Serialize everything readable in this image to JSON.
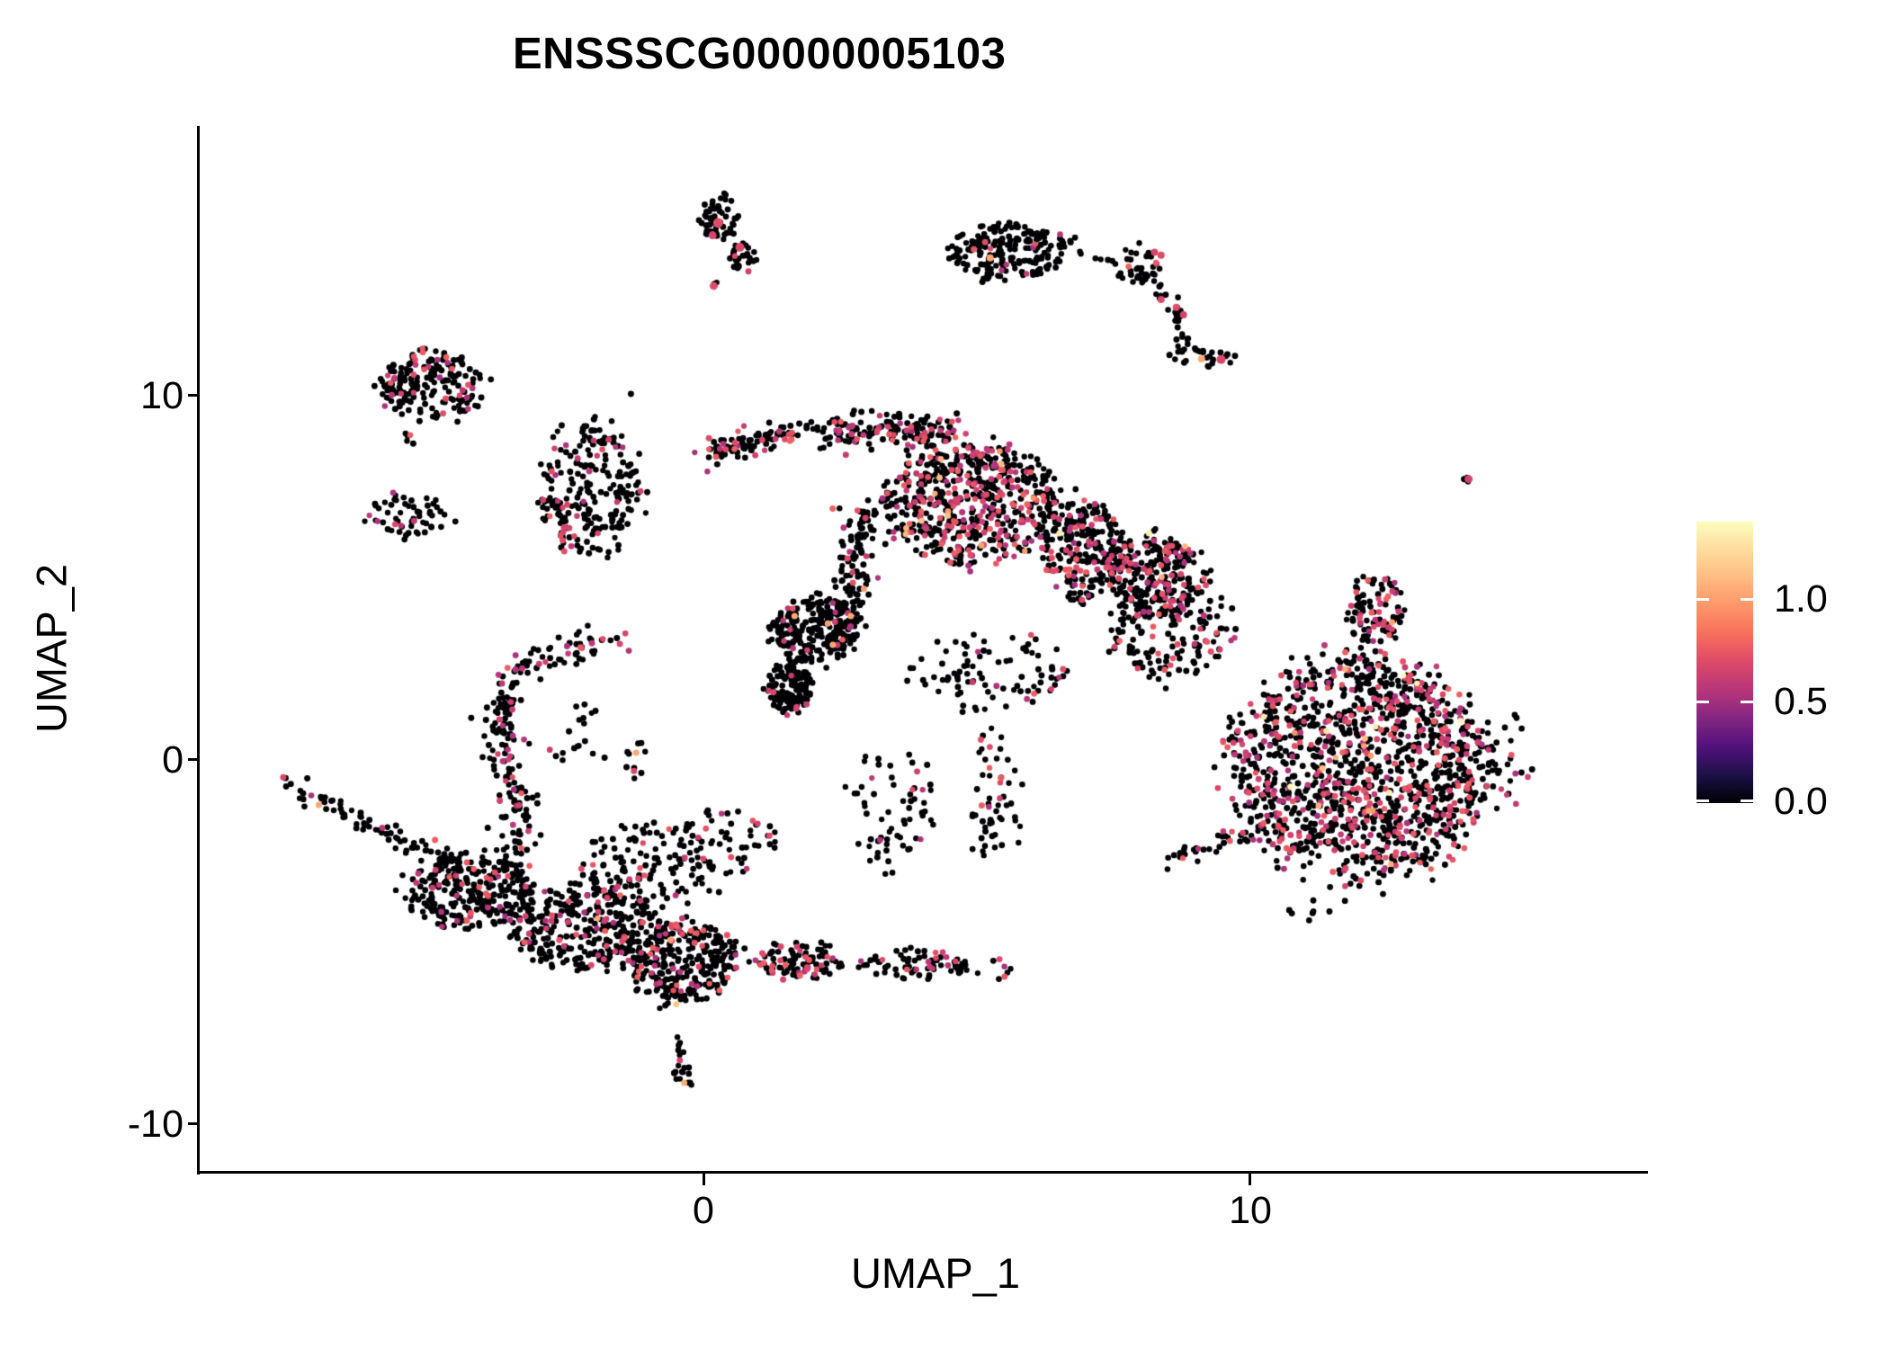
{
  "title": "ENSSSCG00000005103",
  "axes": {
    "x_label": "UMAP_1",
    "y_label": "UMAP_2",
    "xlim": [
      -9.23,
      17.25
    ],
    "ylim": [
      -11.3,
      17.4
    ],
    "x_ticks": [
      {
        "value": 0,
        "label": "0"
      },
      {
        "value": 10,
        "label": "10"
      }
    ],
    "y_ticks": [
      {
        "value": 10,
        "label": "10"
      },
      {
        "value": 0,
        "label": "0"
      },
      {
        "value": -10,
        "label": "-10"
      }
    ]
  },
  "legend": {
    "colormap": "magma",
    "vmin": 0,
    "vmax": 1.38,
    "anchors": [
      "#000004",
      "#1c1147",
      "#51127c",
      "#832681",
      "#b63679",
      "#dd4968",
      "#f76f5c",
      "#fe9569",
      "#febb81",
      "#fedc9d",
      "#fcfdbf"
    ],
    "ticks": [
      {
        "value": 1.0,
        "label": "1.0"
      },
      {
        "value": 0.5,
        "label": "0.5"
      },
      {
        "value": 0.0,
        "label": "0.0"
      }
    ]
  },
  "chart_data": {
    "type": "scatter",
    "title": "ENSSSCG00000005103",
    "xlabel": "UMAP_1",
    "ylabel": "UMAP_2",
    "legend_position": "right",
    "grid": false,
    "seed": 42,
    "point_radius_px": 3.1,
    "value_model": {
      "zero_value": 0,
      "pink_range": [
        0.5,
        0.78
      ],
      "orange_range": [
        0.95,
        1.15
      ],
      "pale_range": [
        1.26,
        1.38
      ]
    },
    "clusters": [
      {
        "name": "top-chain-a",
        "type": "blob",
        "cx": 0.3,
        "cy": 14.89,
        "rx": 0.36,
        "ry": 0.62,
        "n": 55,
        "pink": 0.04
      },
      {
        "name": "top-chain-b",
        "type": "blob",
        "cx": 0.72,
        "cy": 13.85,
        "rx": 0.25,
        "ry": 0.4,
        "n": 28,
        "pink": 0.04
      },
      {
        "name": "top-chain-c",
        "type": "blob",
        "cx": 0.2,
        "cy": 13.1,
        "rx": 0.1,
        "ry": 0.1,
        "n": 3
      },
      {
        "name": "topright-mass",
        "type": "blob",
        "cx": 5.57,
        "cy": 13.95,
        "rx": 1.02,
        "ry": 0.8,
        "n": 190,
        "pink": 0.05
      },
      {
        "name": "topright-mass-tail",
        "type": "chain",
        "pts": [
          [
            6.0,
            14.3
          ],
          [
            6.9,
            14.1
          ]
        ],
        "th": 0.12,
        "n": 14,
        "pink": 0.05
      },
      {
        "name": "topright-trail",
        "type": "chain",
        "pts": [
          [
            6.89,
            13.85
          ],
          [
            7.5,
            13.7
          ]
        ],
        "th": 0.07,
        "n": 6
      },
      {
        "name": "topright-branch",
        "type": "blob",
        "cx": 7.91,
        "cy": 13.63,
        "rx": 0.45,
        "ry": 0.5,
        "n": 35,
        "pink": 0.06
      },
      {
        "name": "topright-chain-down",
        "type": "chain",
        "pts": [
          [
            8.01,
            13.26
          ],
          [
            8.62,
            12.35
          ],
          [
            8.83,
            11.6
          ],
          [
            8.92,
            11.15
          ]
        ],
        "th": 0.16,
        "n": 34,
        "pink": 0.12
      },
      {
        "name": "topright-bottom-blob",
        "type": "blob",
        "cx": 9.03,
        "cy": 11.04,
        "rx": 0.62,
        "ry": 0.3,
        "n": 26,
        "pink": 0.05
      },
      {
        "name": "far-right-dot",
        "type": "blob",
        "cx": 14.0,
        "cy": 7.73,
        "rx": 0.1,
        "ry": 0.1,
        "n": 3
      },
      {
        "name": "left-cluster",
        "type": "blob",
        "cx": -4.97,
        "cy": 10.25,
        "rx": 0.96,
        "ry": 0.99,
        "n": 175,
        "pink": 0.12
      },
      {
        "name": "left-cluster-tip",
        "type": "chain",
        "pts": [
          [
            -5.88,
            10.07
          ],
          [
            -5.3,
            10.2
          ]
        ],
        "th": 0.18,
        "n": 14,
        "pink": 0.1
      },
      {
        "name": "left-cluster-drip",
        "type": "chain",
        "pts": [
          [
            -5.5,
            9.0
          ],
          [
            -5.3,
            8.6
          ]
        ],
        "th": 0.1,
        "n": 5,
        "pink": 0.2
      },
      {
        "name": "midleft-blob",
        "type": "blob",
        "cx": -2.09,
        "cy": 7.41,
        "rx": 0.91,
        "ry": 1.93,
        "n": 240,
        "pink": 0.12
      },
      {
        "name": "left-small-cluster",
        "type": "blob",
        "cx": -5.39,
        "cy": 6.74,
        "rx": 0.74,
        "ry": 0.69,
        "n": 60,
        "pink": 0.1
      },
      {
        "name": "hook",
        "type": "chain",
        "pts": [
          [
            -1.4,
            3.26
          ],
          [
            -2.09,
            3.26
          ],
          [
            -2.83,
            2.96
          ],
          [
            -3.41,
            2.35
          ],
          [
            -3.69,
            1.56
          ],
          [
            -3.72,
            0.62
          ],
          [
            -3.56,
            -0.32
          ],
          [
            -3.39,
            -1.23
          ],
          [
            -3.36,
            -2.1
          ],
          [
            -3.48,
            -2.89
          ],
          [
            -3.34,
            -3.7
          ]
        ],
        "th": 0.33,
        "n": 240,
        "pink": 0.16
      },
      {
        "name": "left-arm",
        "type": "chain",
        "pts": [
          [
            -7.73,
            -0.44
          ],
          [
            -6.95,
            -1.16
          ],
          [
            -5.96,
            -1.9
          ],
          [
            -5.14,
            -2.47
          ],
          [
            -4.45,
            -2.79
          ]
        ],
        "th": 0.17,
        "n": 80,
        "pink": 0.07
      },
      {
        "name": "band-a",
        "type": "blob",
        "cx": -4.32,
        "cy": -3.58,
        "rx": 1.15,
        "ry": 1.04,
        "n": 260,
        "pink": 0.1
      },
      {
        "name": "band-b",
        "type": "blob",
        "cx": -2.17,
        "cy": -4.62,
        "rx": 1.4,
        "ry": 1.16,
        "n": 330,
        "pink": 0.13,
        "orange": 0.004
      },
      {
        "name": "band-c",
        "type": "blob",
        "cx": -0.4,
        "cy": -5.51,
        "rx": 1.02,
        "ry": 1.14,
        "n": 300,
        "pink": 0.15,
        "orange": 0.007
      },
      {
        "name": "band-vtip",
        "type": "chain",
        "pts": [
          [
            -0.55,
            -6.1
          ],
          [
            -0.69,
            -6.75
          ]
        ],
        "th": 0.14,
        "n": 12,
        "pink": 0.08
      },
      {
        "name": "band-arm1",
        "type": "blob",
        "cx": 1.75,
        "cy": -5.51,
        "rx": 0.85,
        "ry": 0.55,
        "n": 100,
        "pink": 0.27
      },
      {
        "name": "band-arm2",
        "type": "blob",
        "cx": 3.84,
        "cy": -5.6,
        "rx": 1.0,
        "ry": 0.42,
        "n": 70,
        "pink": 0.22
      },
      {
        "name": "band-arm3",
        "type": "blob",
        "cx": 5.2,
        "cy": -5.75,
        "rx": 0.5,
        "ry": 0.3,
        "n": 10,
        "pink": 0.2
      },
      {
        "name": "drip",
        "type": "chain",
        "pts": [
          [
            -0.49,
            -7.55
          ],
          [
            -0.41,
            -8.1
          ]
        ],
        "th": 0.08,
        "n": 6
      },
      {
        "name": "drip-blob",
        "type": "blob",
        "cx": -0.4,
        "cy": -8.69,
        "rx": 0.22,
        "ry": 0.37,
        "n": 14
      },
      {
        "name": "central-left-arm",
        "type": "chain",
        "pts": [
          [
            0.02,
            8.32
          ],
          [
            0.79,
            8.72
          ],
          [
            1.7,
            9.06
          ]
        ],
        "th": 0.26,
        "n": 95,
        "pink": 0.22
      },
      {
        "name": "central-top-band",
        "type": "chain",
        "pts": [
          [
            2.03,
            8.96
          ],
          [
            3.26,
            9.06
          ],
          [
            4.58,
            8.94
          ]
        ],
        "th": 0.32,
        "n": 170,
        "pink": 0.27
      },
      {
        "name": "central-core",
        "type": "blob",
        "cx": 4.91,
        "cy": 7.04,
        "rx": 1.57,
        "ry": 1.68,
        "n": 600,
        "pink": 0.3,
        "orange": 0.012
      },
      {
        "name": "central-right-1",
        "type": "blob",
        "cx": 6.97,
        "cy": 5.75,
        "rx": 0.75,
        "ry": 1.36,
        "n": 220,
        "pink": 0.25,
        "orange": 0.005
      },
      {
        "name": "central-right-2",
        "type": "blob",
        "cx": 8.29,
        "cy": 5.06,
        "rx": 0.99,
        "ry": 1.11,
        "n": 260,
        "pink": 0.22,
        "orange": 0.008
      },
      {
        "name": "central-neck",
        "type": "chain",
        "pts": [
          [
            2.98,
            6.99
          ],
          [
            2.73,
            5.06
          ],
          [
            2.57,
            3.58
          ]
        ],
        "th": 0.33,
        "n": 130,
        "pink": 0.08
      },
      {
        "name": "central-lowerleft",
        "type": "blob",
        "cx": 2.03,
        "cy": 3.58,
        "rx": 0.79,
        "ry": 0.89,
        "n": 230,
        "pink": 0.07
      },
      {
        "name": "central-tail",
        "type": "blob",
        "cx": 1.55,
        "cy": 2.05,
        "rx": 0.46,
        "ry": 0.77,
        "n": 130,
        "pink": 0.04
      },
      {
        "name": "central-between",
        "type": "blob",
        "cx": 8.53,
        "cy": 3.58,
        "rx": 1.15,
        "ry": 1.36,
        "n": 160,
        "pink": 0.2
      },
      {
        "name": "central-bottom-sparse",
        "type": "blob",
        "cx": 5.24,
        "cy": 2.47,
        "rx": 1.6,
        "ry": 1.1,
        "n": 90,
        "pink": 0.1
      },
      {
        "name": "central-column",
        "type": "blob",
        "cx": 5.32,
        "cy": -1.11,
        "rx": 0.55,
        "ry": 1.85,
        "n": 55,
        "pink": 0.12
      },
      {
        "name": "central-web2",
        "type": "blob",
        "cx": 3.43,
        "cy": -1.36,
        "rx": 0.9,
        "ry": 1.6,
        "n": 65,
        "pink": 0.1
      },
      {
        "name": "right-blob",
        "type": "blob",
        "cx": 12.04,
        "cy": -0.2,
        "rx": 2.44,
        "ry": 3.01,
        "n": 1350,
        "pink": 0.26,
        "orange": 0.012,
        "pale": 0.004
      },
      {
        "name": "right-horn",
        "type": "blob",
        "cx": 12.29,
        "cy": 4.15,
        "rx": 0.56,
        "ry": 0.89,
        "n": 95,
        "pink": 0.3
      },
      {
        "name": "right-gap-dots",
        "type": "blob",
        "cx": 12.16,
        "cy": 2.47,
        "rx": 0.5,
        "ry": 0.62,
        "n": 18,
        "pink": 0.15
      },
      {
        "name": "right-outliers",
        "type": "blob",
        "cx": 14.79,
        "cy": 0.0,
        "rx": 0.41,
        "ry": 1.65,
        "n": 12,
        "pink": 0.1
      },
      {
        "name": "right-arm",
        "type": "chain",
        "pts": [
          [
            9.93,
            -2.05
          ],
          [
            9.19,
            -2.47
          ],
          [
            8.45,
            -2.77
          ]
        ],
        "th": 0.2,
        "n": 35,
        "pink": 0.2
      },
      {
        "name": "right-below",
        "type": "blob",
        "cx": 11.17,
        "cy": -3.95,
        "rx": 1.0,
        "ry": 0.5,
        "n": 8
      },
      {
        "name": "web",
        "type": "blob",
        "cx": -1.02,
        "cy": -2.96,
        "rx": 1.3,
        "ry": 1.23,
        "n": 135,
        "pink": 0.13
      },
      {
        "name": "web-b",
        "type": "blob",
        "cx": 0.46,
        "cy": -2.22,
        "rx": 0.9,
        "ry": 0.9,
        "n": 60,
        "pink": 0.15
      },
      {
        "name": "side-dots",
        "type": "blob",
        "cx": -1.24,
        "cy": 0.0,
        "rx": 0.3,
        "ry": 0.55,
        "n": 9,
        "pink": 0.1
      },
      {
        "name": "hook-east-sparse",
        "type": "blob",
        "cx": -2.34,
        "cy": 0.62,
        "rx": 0.6,
        "ry": 1.0,
        "n": 18,
        "pink": 0.05
      },
      {
        "name": "lone-dot",
        "type": "blob",
        "cx": -1.35,
        "cy": 10.0,
        "rx": 0.05,
        "ry": 0.05,
        "n": 1
      }
    ],
    "accents": [
      {
        "x": 0.26,
        "y": 14.74,
        "v": 0.7,
        "r": 5.5
      },
      {
        "x": 0.16,
        "y": 14.4,
        "v": 0.66,
        "r": 4.5
      },
      {
        "x": 0.66,
        "y": 14.07,
        "v": 0.68,
        "r": 5.0
      },
      {
        "x": 0.18,
        "y": 13.01,
        "v": 0.7,
        "r": 4.5
      },
      {
        "x": 5.24,
        "y": 13.78,
        "v": 1.02,
        "r": 4.0
      },
      {
        "x": 8.25,
        "y": 13.93,
        "v": 0.66,
        "r": 4.0
      },
      {
        "x": 8.37,
        "y": 13.85,
        "v": 0.7,
        "r": 4.0
      },
      {
        "x": 8.37,
        "y": 12.64,
        "v": 0.68,
        "r": 4.0
      },
      {
        "x": 8.65,
        "y": 12.42,
        "v": 0.7,
        "r": 4.0
      },
      {
        "x": 8.78,
        "y": 12.22,
        "v": 0.65,
        "r": 4.0
      },
      {
        "x": 9.11,
        "y": 11.01,
        "v": 1.05,
        "r": 4.0
      },
      {
        "x": 9.47,
        "y": 10.99,
        "v": 0.68,
        "r": 5.0
      },
      {
        "x": 14.0,
        "y": 7.71,
        "v": 0.65,
        "r": 4.5
      },
      {
        "x": -7.05,
        "y": -1.23,
        "v": 1.02,
        "r": 3.5
      },
      {
        "x": -7.7,
        "y": -0.47,
        "v": 0.68,
        "r": 3.5
      },
      {
        "x": -0.36,
        "y": -8.86,
        "v": 1.05,
        "r": 3.5
      },
      {
        "x": -0.44,
        "y": -8.24,
        "v": 0.66,
        "r": 3.5
      },
      {
        "x": 2.69,
        "y": 3.95,
        "v": 1.03,
        "r": 3.5
      },
      {
        "x": 2.93,
        "y": 4.7,
        "v": 1.0,
        "r": 3.5
      },
      {
        "x": 1.66,
        "y": 3.95,
        "v": 1.05,
        "r": 3.5
      },
      {
        "x": 2.27,
        "y": 3.75,
        "v": 1.02,
        "r": 3.5
      },
      {
        "x": 2.36,
        "y": 3.16,
        "v": 1.04,
        "r": 3.5
      },
      {
        "x": 8.15,
        "y": 6.22,
        "v": 1.32,
        "r": 3.5
      },
      {
        "x": 6.51,
        "y": 6.22,
        "v": 1.3,
        "r": 3.5
      },
      {
        "x": 12.6,
        "y": 3.78,
        "v": 1.04,
        "r": 3.5
      },
      {
        "x": -1.24,
        "y": 0.2,
        "v": 1.03,
        "r": 3.5
      },
      {
        "x": -1.28,
        "y": -0.3,
        "v": 0.66,
        "r": 3.5
      },
      {
        "x": 12.55,
        "y": -0.9,
        "v": 1.33,
        "r": 3.5
      },
      {
        "x": 11.4,
        "y": 0.8,
        "v": 1.3,
        "r": 3.5
      }
    ]
  }
}
